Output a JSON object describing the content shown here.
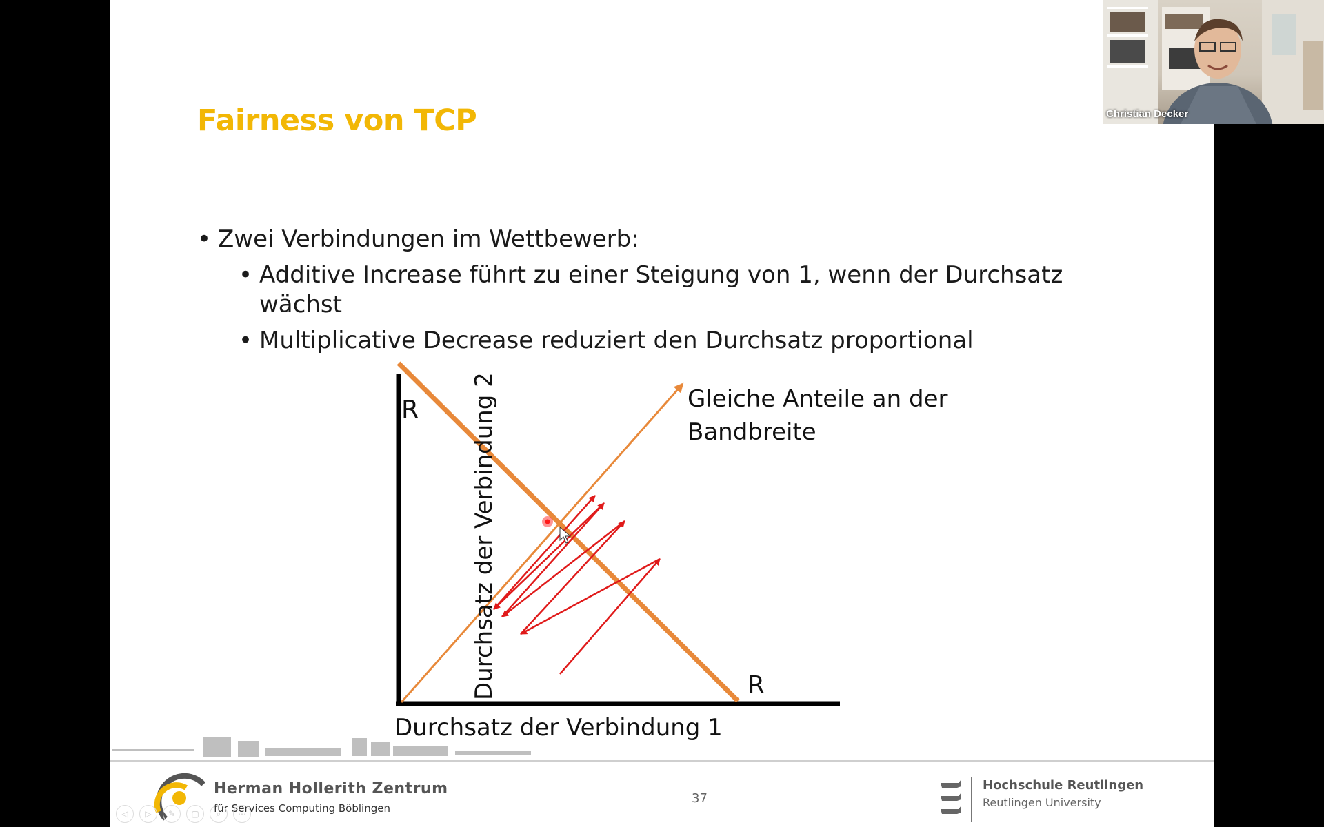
{
  "slide": {
    "title": "Fairness von TCP",
    "bullets": [
      {
        "level": 1,
        "text": "Zwei Verbindungen im Wettbewerb:"
      },
      {
        "level": 2,
        "text": "Additive Increase führt zu einer Steigung von 1, wenn der Durchsatz wächst"
      },
      {
        "level": 2,
        "text": "Multiplicative Decrease reduziert den Durchsatz proportional"
      }
    ],
    "bullet_char": "•",
    "diagram": {
      "y_axis_label": "Durchsatz der Verbindung 2",
      "x_axis_label": "Durchsatz der Verbindung 1",
      "y_max_label": "R",
      "x_max_label": "R",
      "fair_line_label_line1": "Gleiche Anteile an der",
      "fair_line_label_line2": "Bandbreite",
      "colors": {
        "capacity_line": "#e8893a",
        "fair_line": "#e8893a",
        "trajectory": "#e01a1a",
        "axes": "#000000"
      }
    },
    "page_number": "37"
  },
  "footer": {
    "left_logo_name": "Herman Hollerith Zentrum",
    "left_logo_sub": "für Services Computing Böblingen",
    "right_logo_name": "Hochschule Reutlingen",
    "right_logo_sub": "Reutlingen University",
    "nav_icons": [
      "prev-icon",
      "next-icon",
      "pen-icon",
      "slides-icon",
      "zoom-icon",
      "more-icon"
    ]
  },
  "webcam": {
    "participant_name": "Christian Decker"
  }
}
